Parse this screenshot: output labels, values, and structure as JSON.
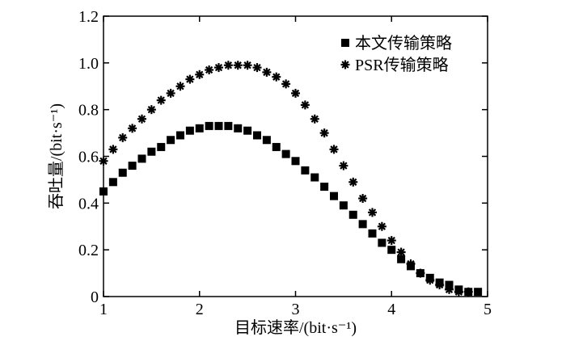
{
  "chart_data": {
    "type": "scatter",
    "xlabel": "目标速率/(bit·s⁻¹)",
    "ylabel": "吞吐量/(bit·s⁻¹)",
    "xlim": [
      1,
      5
    ],
    "ylim": [
      0,
      1.2
    ],
    "xticks": [
      "1",
      "2",
      "3",
      "4",
      "5"
    ],
    "yticks": [
      "0",
      "0.2",
      "0.4",
      "0.6",
      "0.8",
      "1.0",
      "1.2"
    ],
    "grid": false,
    "legend_position": "top-right",
    "series": [
      {
        "name": "本文传输策略",
        "marker": "square",
        "color": "#000000",
        "x": [
          1.0,
          1.1,
          1.2,
          1.3,
          1.4,
          1.5,
          1.6,
          1.7,
          1.8,
          1.9,
          2.0,
          2.1,
          2.2,
          2.3,
          2.4,
          2.5,
          2.6,
          2.7,
          2.8,
          2.9,
          3.0,
          3.1,
          3.2,
          3.3,
          3.4,
          3.5,
          3.6,
          3.7,
          3.8,
          3.9,
          4.0,
          4.1,
          4.2,
          4.3,
          4.4,
          4.5,
          4.6,
          4.7,
          4.8,
          4.9
        ],
        "values": [
          0.45,
          0.49,
          0.53,
          0.56,
          0.59,
          0.62,
          0.64,
          0.67,
          0.69,
          0.71,
          0.72,
          0.73,
          0.73,
          0.73,
          0.72,
          0.71,
          0.69,
          0.67,
          0.64,
          0.61,
          0.58,
          0.54,
          0.51,
          0.47,
          0.43,
          0.39,
          0.35,
          0.31,
          0.27,
          0.23,
          0.2,
          0.16,
          0.13,
          0.1,
          0.08,
          0.06,
          0.05,
          0.03,
          0.02,
          0.02
        ]
      },
      {
        "name": "PSR传输策略",
        "marker": "asterisk",
        "color": "#000000",
        "x": [
          1.0,
          1.1,
          1.2,
          1.3,
          1.4,
          1.5,
          1.6,
          1.7,
          1.8,
          1.9,
          2.0,
          2.1,
          2.2,
          2.3,
          2.4,
          2.5,
          2.6,
          2.7,
          2.8,
          2.9,
          3.0,
          3.1,
          3.2,
          3.3,
          3.4,
          3.5,
          3.6,
          3.7,
          3.8,
          3.9,
          4.0,
          4.1,
          4.2,
          4.3,
          4.4,
          4.5,
          4.6,
          4.7,
          4.8
        ],
        "values": [
          0.58,
          0.63,
          0.68,
          0.72,
          0.76,
          0.8,
          0.84,
          0.87,
          0.9,
          0.93,
          0.95,
          0.97,
          0.98,
          0.99,
          0.99,
          0.99,
          0.98,
          0.96,
          0.94,
          0.91,
          0.87,
          0.82,
          0.76,
          0.7,
          0.63,
          0.56,
          0.49,
          0.42,
          0.36,
          0.3,
          0.24,
          0.19,
          0.14,
          0.1,
          0.07,
          0.05,
          0.03,
          0.02,
          0.02
        ]
      }
    ]
  }
}
